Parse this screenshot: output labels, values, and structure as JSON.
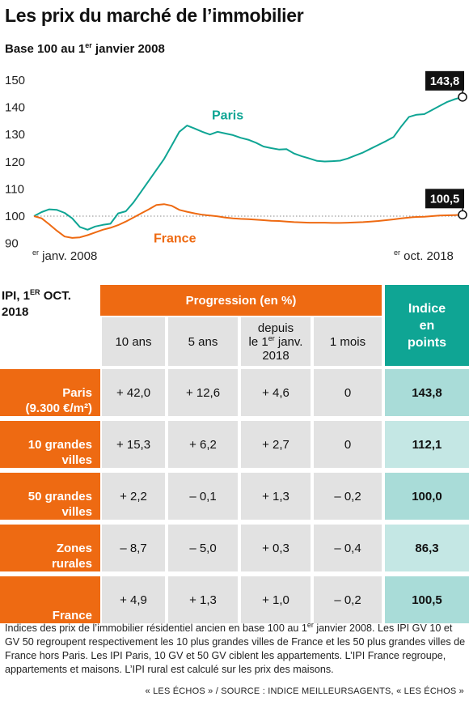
{
  "title": "Les prix du marché de l’immobilier",
  "subtitle_pre": "Base 100 au 1",
  "subtitle_sup": "er",
  "subtitle_post": " janvier 2008",
  "chart_data": {
    "type": "line",
    "ylim": [
      88,
      152
    ],
    "yticks": [
      90,
      100,
      110,
      120,
      130,
      140,
      150
    ],
    "reference_line": 100,
    "x_start_label_sup": "er",
    "x_start_label": " janv. 2008",
    "x_end_label_sup": "er",
    "x_end_label": " oct. 2018",
    "series": [
      {
        "name": "Paris",
        "color": "#0fa594",
        "end_label": "143,8",
        "values": [
          100,
          101.5,
          102.5,
          102.3,
          101.2,
          99.2,
          96,
          95,
          96.2,
          96.8,
          97.2,
          101,
          101.8,
          105,
          109,
          113,
          117,
          121,
          126,
          131,
          133.3,
          132.2,
          131,
          130,
          131,
          130.4,
          129.8,
          128.8,
          128.1,
          127,
          125.6,
          125,
          124.5,
          124.6,
          123,
          122,
          121.2,
          120.3,
          120.1,
          120.2,
          120.4,
          121.2,
          122.3,
          123.4,
          124.8,
          126.2,
          127.6,
          129.1,
          133,
          136.5,
          137.3,
          137.5,
          139,
          140.5,
          142,
          143,
          143.8
        ]
      },
      {
        "name": "France",
        "color": "#ee6a12",
        "end_label": "100,5",
        "values": [
          100,
          99.2,
          97,
          94.6,
          92.5,
          92,
          92.2,
          93,
          94,
          95,
          95.7,
          96.7,
          98,
          99.5,
          101,
          102.5,
          104.1,
          104.4,
          103.8,
          102.3,
          101.6,
          101,
          100.5,
          100.2,
          99.9,
          99.5,
          99.2,
          99,
          98.9,
          98.7,
          98.5,
          98.3,
          98.2,
          98,
          97.8,
          97.7,
          97.6,
          97.6,
          97.6,
          97.5,
          97.5,
          97.6,
          97.7,
          97.8,
          98,
          98.2,
          98.5,
          98.8,
          99.2,
          99.5,
          99.7,
          99.8,
          100,
          100.2,
          100.3,
          100.4,
          100.5
        ]
      }
    ]
  },
  "table": {
    "corner_label": "IPI, 1",
    "corner_sup": "ER",
    "corner_label_end": " OCT.",
    "corner_year": "2018",
    "progression_header": "Progression (en %)",
    "index_header_line1": "Indice",
    "index_header_line2": "en",
    "index_header_line3": "points",
    "columns": {
      "c1": "10 ans",
      "c2": "5 ans",
      "c3_line1": "depuis",
      "c3_line2_pre": "le 1",
      "c3_line2_sup": "er",
      "c3_line2_post": " janv.",
      "c3_line3": "2018",
      "c4": "1 mois"
    },
    "rows": [
      {
        "label1": "Paris",
        "label2": "(9.300 €/m²)",
        "v1": "+ 42,0",
        "v2": "+ 12,6",
        "v3": "+ 4,6",
        "v4": "0",
        "index": "143,8"
      },
      {
        "label1": "10 grandes",
        "label2": "villes",
        "v1": "+ 15,3",
        "v2": "+ 6,2",
        "v3": "+ 2,7",
        "v4": "0",
        "index": "112,1"
      },
      {
        "label1": "50 grandes",
        "label2": "villes",
        "v1": "+ 2,2",
        "v2": "– 0,1",
        "v3": "+ 1,3",
        "v4": "– 0,2",
        "index": "100,0"
      },
      {
        "label1": "Zones",
        "label2": "rurales",
        "v1": "– 8,7",
        "v2": "– 5,0",
        "v3": "+ 0,3",
        "v4": "– 0,4",
        "index": "86,3"
      },
      {
        "label1": "France",
        "label2": "",
        "v1": "+ 4,9",
        "v2": "+ 1,3",
        "v3": "+ 1,0",
        "v4": "– 0,2",
        "index": "100,5"
      }
    ]
  },
  "footnote_pre": "Indices des prix de l’immobilier résidentiel ancien en base 100 au 1",
  "footnote_sup": "er",
  "footnote_post": " janvier 2008. Les IPI GV 10 et GV 50 regroupent respectivement les 10 plus grandes villes de France et les 50 plus grandes villes de France hors Paris. Les IPI Paris, 10 GV et 50 GV ciblent les appartements. L’IPI France regroupe, appartements et maisons. L’IPI rural est calculé sur les prix des maisons.",
  "source": "« LES ÉCHOS » / SOURCE : INDICE MEILLEURSAGENTS, « LES ÉCHOS »"
}
